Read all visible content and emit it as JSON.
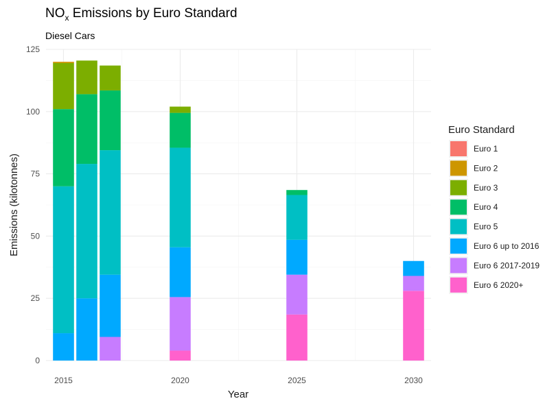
{
  "chart_data": {
    "type": "bar",
    "stacked": true,
    "title_main": "NO",
    "title_sub": "x",
    "title_rest": " Emissions by Euro Standard",
    "subtitle": "Diesel Cars",
    "xlabel": "Year",
    "ylabel": "Emissions (kilotonnes)",
    "xlim": [
      2014.25,
      2030.75
    ],
    "ylim": [
      0,
      125
    ],
    "x_ticks": [
      2015,
      2020,
      2025,
      2030
    ],
    "y_ticks": [
      0,
      25,
      50,
      75,
      100,
      125
    ],
    "grid": true,
    "legend_title": "Euro Standard",
    "legend_position": "right",
    "series": [
      {
        "name": "Euro 1",
        "color": "#F8766D"
      },
      {
        "name": "Euro 2",
        "color": "#CD9600"
      },
      {
        "name": "Euro 3",
        "color": "#7CAE00"
      },
      {
        "name": "Euro 4",
        "color": "#00BE67"
      },
      {
        "name": "Euro 5",
        "color": "#00BFC4"
      },
      {
        "name": "Euro 6 up to 2016",
        "color": "#00A9FF"
      },
      {
        "name": "Euro 6 2017-2019",
        "color": "#C77CFF"
      },
      {
        "name": "Euro 6 2020+",
        "color": "#FF61CC"
      }
    ],
    "x": [
      2015,
      2016,
      2017,
      2020,
      2025,
      2030
    ],
    "values": {
      "Euro 1": [
        0,
        0,
        0,
        0,
        0,
        0
      ],
      "Euro 2": [
        0.5,
        0,
        0,
        0,
        0,
        0
      ],
      "Euro 3": [
        18.5,
        13.5,
        10,
        2.5,
        0,
        0
      ],
      "Euro 4": [
        31,
        28,
        24,
        14,
        2,
        0
      ],
      "Euro 5": [
        59,
        54,
        50,
        40,
        18,
        0
      ],
      "Euro 6 up to 2016": [
        11,
        25,
        25,
        20,
        14,
        6
      ],
      "Euro 6 2017-2019": [
        0,
        0,
        9.5,
        21.5,
        16,
        6
      ],
      "Euro 6 2020+": [
        0,
        0,
        0,
        4,
        18.5,
        28
      ]
    }
  }
}
